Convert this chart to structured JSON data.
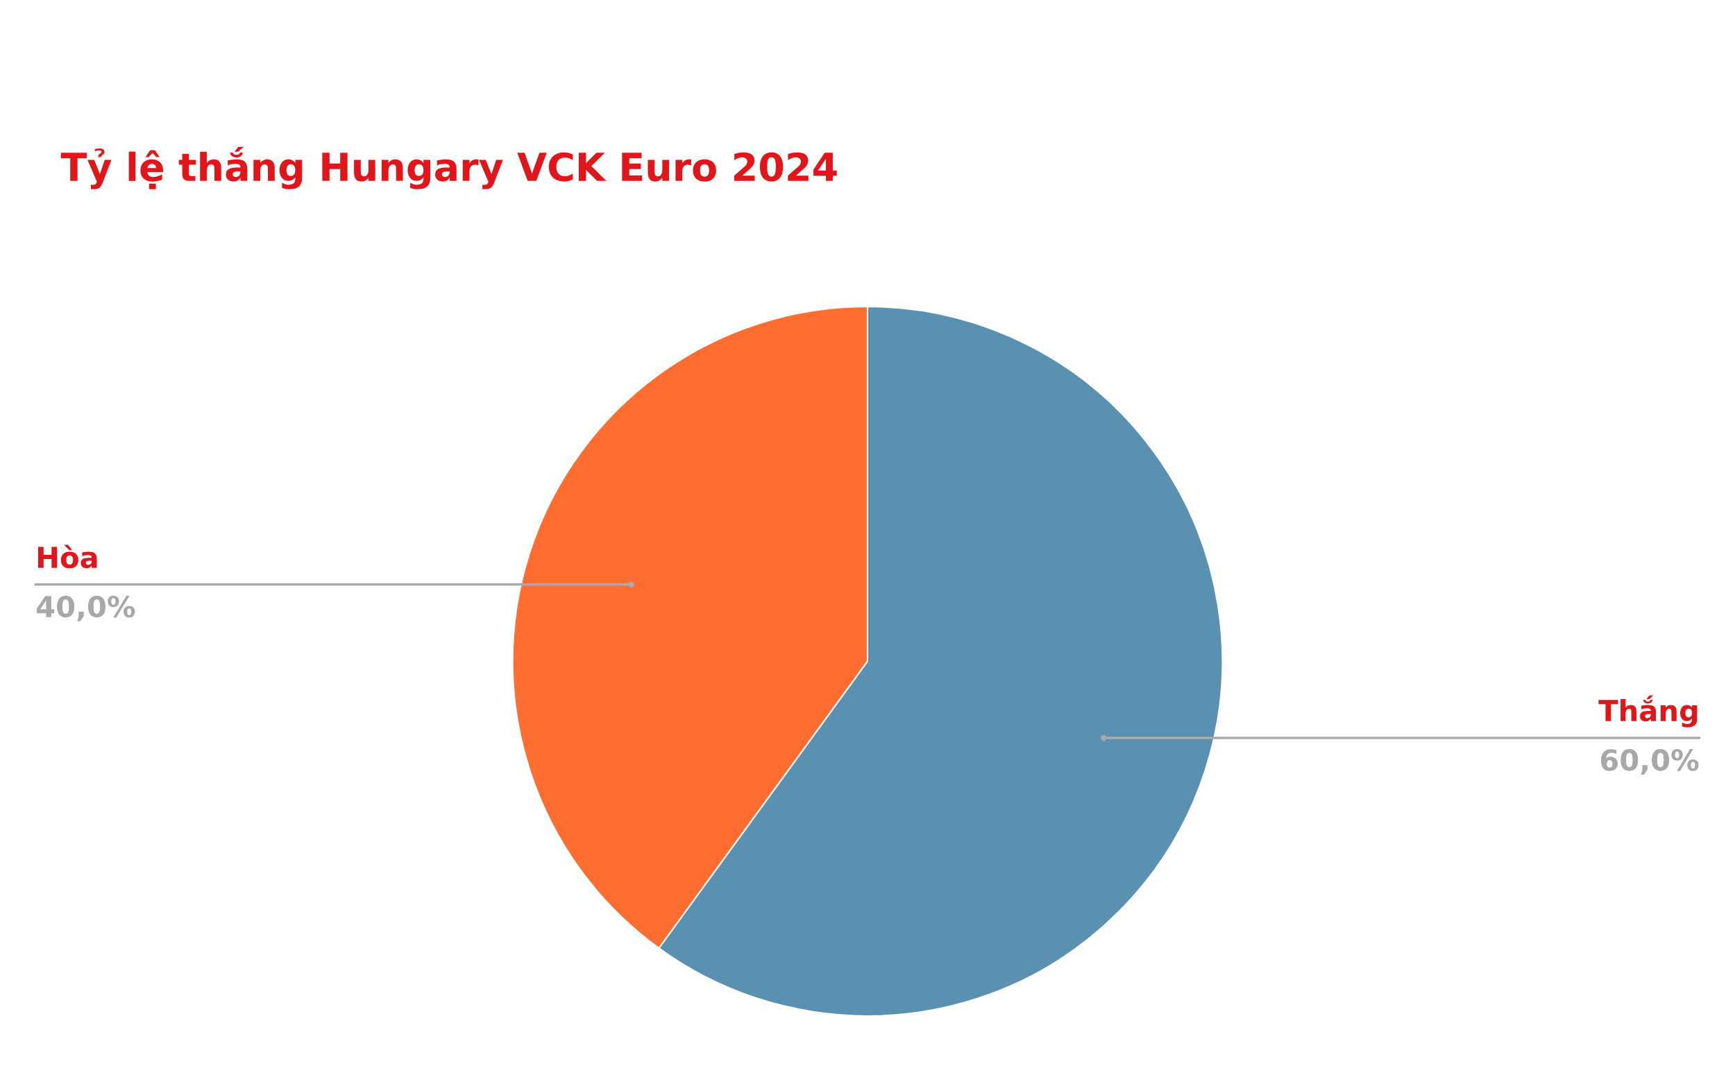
{
  "chart_data": {
    "type": "pie",
    "title": "Tỷ lệ thắng Hungary VCK Euro 2024",
    "categories": [
      "Thắng",
      "Hòa"
    ],
    "values": [
      60,
      40
    ],
    "colors": [
      "#5a91b0",
      "#ff6d31"
    ],
    "value_labels": [
      "60,0%",
      "40,0%"
    ],
    "legend": false
  }
}
